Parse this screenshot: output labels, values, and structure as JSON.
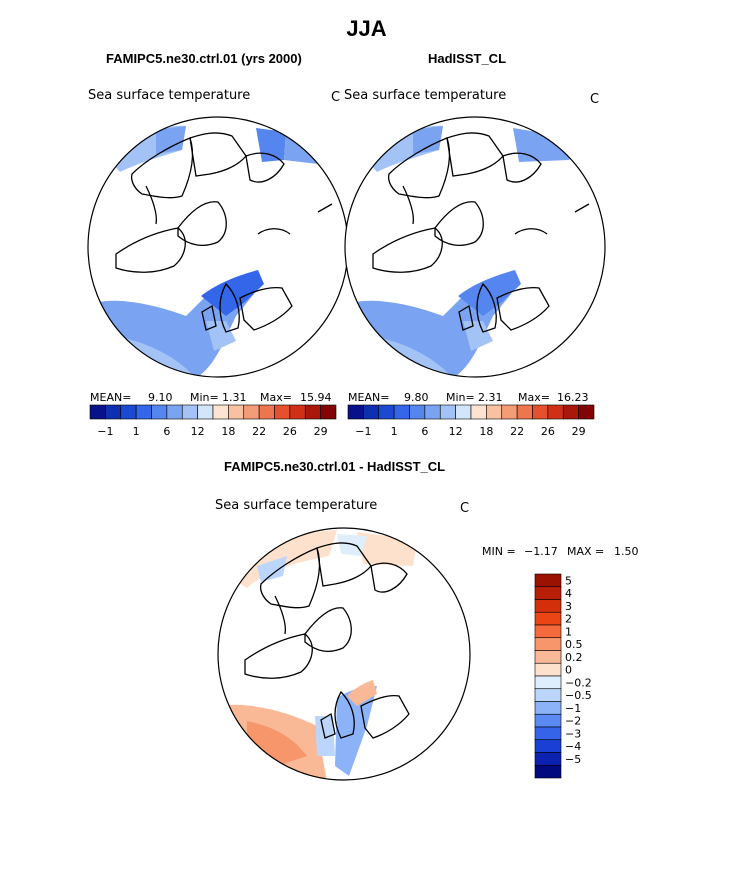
{
  "figure": {
    "season": "JJA",
    "variable": "Sea surface temperature",
    "units": "C"
  },
  "panels": [
    {
      "name": "model",
      "subtitle": "FAMIPC5.ne30.ctrl.01 (yrs 2000)",
      "label": "Sea surface temperature",
      "units": "C",
      "mean_label": "MEAN=",
      "mean": "9.10",
      "min_label": "Min=",
      "min": "1.31",
      "max_label": "Max=",
      "max": "15.94"
    },
    {
      "name": "observations",
      "subtitle": "HadISST_CL",
      "label": "Sea surface temperature",
      "units": "C",
      "mean_label": "MEAN=",
      "mean": "9.80",
      "min_label": "Min=",
      "min": "2.31",
      "max_label": "Max=",
      "max": "16.23"
    },
    {
      "name": "difference",
      "subtitle": "FAMIPC5.ne30.ctrl.01 - HadISST_CL",
      "label": "Sea surface temperature",
      "units": "C",
      "min_label": "MIN =",
      "min": "−1.17",
      "max_label": "MAX =",
      "max": "1.50"
    }
  ],
  "chart_data": [
    {
      "type": "heatmap",
      "projection": "north-polar-stereographic",
      "title": "FAMIPC5.ne30.ctrl.01 (yrs 2000)",
      "field": "Sea surface temperature",
      "units": "C",
      "mean": 9.1,
      "min": 1.31,
      "max": 15.94,
      "colorbar": {
        "orientation": "horizontal",
        "tick_labels": [
          "−1",
          "1",
          "6",
          "12",
          "18",
          "22",
          "26",
          "29"
        ],
        "colors": [
          "#08108a",
          "#0d2fb0",
          "#1b49d1",
          "#3366e8",
          "#5585ee",
          "#7aa3f2",
          "#a3c2f5",
          "#d3e5f8",
          "#fde4d2",
          "#f8c2a2",
          "#f39c76",
          "#ee764f",
          "#e5512e",
          "#cf3016",
          "#aa170b",
          "#820404"
        ]
      }
    },
    {
      "type": "heatmap",
      "projection": "north-polar-stereographic",
      "title": "HadISST_CL",
      "field": "Sea surface temperature",
      "units": "C",
      "mean": 9.8,
      "min": 2.31,
      "max": 16.23,
      "colorbar": {
        "orientation": "horizontal",
        "tick_labels": [
          "−1",
          "1",
          "6",
          "12",
          "18",
          "22",
          "26",
          "29"
        ],
        "colors": [
          "#08108a",
          "#0d2fb0",
          "#1b49d1",
          "#3366e8",
          "#5585ee",
          "#7aa3f2",
          "#a3c2f5",
          "#d3e5f8",
          "#fde4d2",
          "#f8c2a2",
          "#f39c76",
          "#ee764f",
          "#e5512e",
          "#cf3016",
          "#aa170b",
          "#820404"
        ]
      }
    },
    {
      "type": "heatmap",
      "projection": "north-polar-stereographic",
      "title": "FAMIPC5.ne30.ctrl.01 - HadISST_CL",
      "field": "Sea surface temperature",
      "units": "C",
      "min": -1.17,
      "max": 1.5,
      "colorbar": {
        "orientation": "vertical",
        "levels_top_to_bottom": [
          "5",
          "4",
          "3",
          "2",
          "1",
          "0.5",
          "0.2",
          "0",
          "−0.2",
          "−0.5",
          "−1",
          "−2",
          "−3",
          "−4",
          "−5"
        ],
        "colors_top_to_bottom": [
          "#9b1300",
          "#b81d05",
          "#d42f0b",
          "#ec4515",
          "#f56a3c",
          "#f7956b",
          "#fab996",
          "#fde1cc",
          "#dfeefc",
          "#bcd6fb",
          "#8cb3f8",
          "#5b8af3",
          "#3563ea",
          "#1a3fd4",
          "#0b22b0",
          "#020a80"
        ]
      }
    }
  ]
}
